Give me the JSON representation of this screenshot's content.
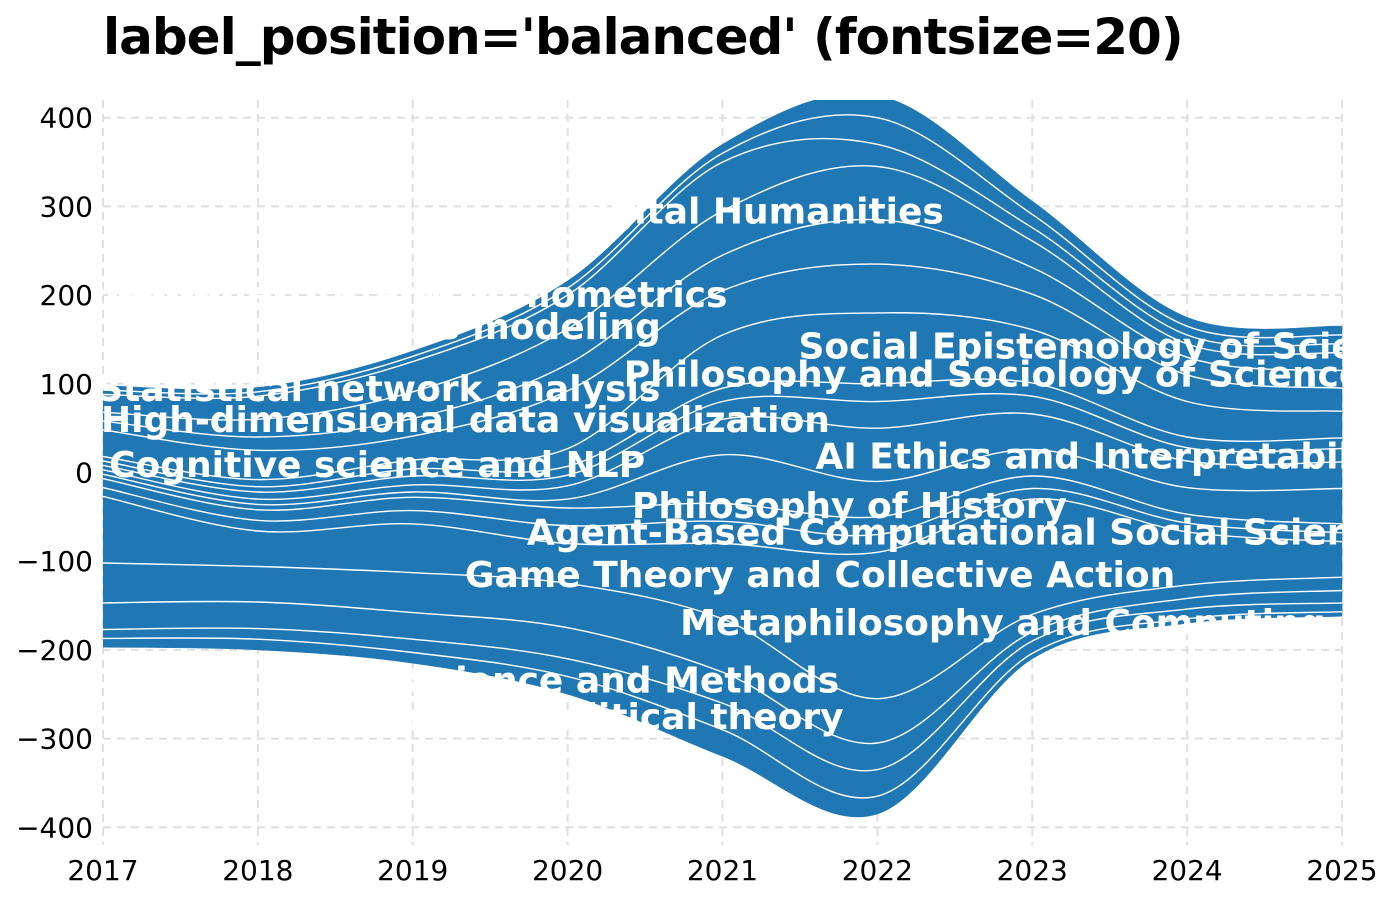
{
  "chart_data": {
    "type": "area",
    "subtype": "streamgraph",
    "title": "label_position='balanced' (fontsize=20)",
    "xlabel": "",
    "ylabel": "",
    "x": [
      2017,
      2018,
      2019,
      2020,
      2021,
      2022,
      2023,
      2024,
      2025
    ],
    "xlim": [
      2017,
      2025
    ],
    "ylim": [
      -420,
      420
    ],
    "xticks": [
      2017,
      2018,
      2019,
      2020,
      2021,
      2022,
      2023,
      2024,
      2025
    ],
    "yticks": [
      -400,
      -300,
      -200,
      -100,
      0,
      100,
      200,
      300,
      400
    ],
    "ytick_labels": [
      "−400",
      "−300",
      "−200",
      "−100",
      "0",
      "100",
      "200",
      "300",
      "400"
    ],
    "grid": true,
    "fill_color": "#1f77b4",
    "line_color": "#ffffff",
    "baseline": [
      -197,
      -200,
      -215,
      -250,
      -320,
      -385,
      -210,
      -170,
      -162
    ],
    "series": [
      {
        "name": "",
        "values": [
          10,
          12,
          12,
          20,
          30,
          20,
          6,
          5,
          5
        ]
      },
      {
        "name": "",
        "values": [
          10,
          12,
          15,
          20,
          30,
          30,
          14,
          11,
          10
        ]
      },
      {
        "name": "",
        "values": [
          30,
          30,
          30,
          35,
          35,
          30,
          10,
          12,
          14
        ]
      },
      {
        "name": "",
        "values": [
          45,
          40,
          45,
          50,
          60,
          50,
          20,
          15,
          15
        ]
      },
      {
        "name": "",
        "values": [
          75,
          40,
          55,
          45,
          85,
          165,
          130,
          60,
          40
        ]
      },
      {
        "name": "",
        "values": [
          10,
          12,
          15,
          20,
          25,
          20,
          12,
          10,
          10
        ]
      },
      {
        "name": "",
        "values": [
          10,
          12,
          15,
          20,
          20,
          20,
          14,
          10,
          10
        ]
      },
      {
        "name": "",
        "values": [
          5,
          6,
          6,
          10,
          55,
          40,
          30,
          30,
          40
        ]
      },
      {
        "name": "",
        "values": [
          5,
          6,
          8,
          15,
          40,
          60,
          40,
          30,
          30
        ]
      },
      {
        "name": "",
        "values": [
          5,
          8,
          10,
          12,
          20,
          30,
          20,
          15,
          15
        ]
      },
      {
        "name": "",
        "values": [
          5,
          6,
          8,
          10,
          15,
          20,
          15,
          12,
          12
        ]
      },
      {
        "name": "",
        "values": [
          5,
          8,
          10,
          20,
          60,
          80,
          60,
          40,
          30
        ]
      },
      {
        "name": "",
        "values": [
          30,
          33,
          27,
          65,
          50,
          55,
          40,
          30,
          26
        ]
      },
      {
        "name": "",
        "values": [
          10,
          15,
          20,
          30,
          40,
          50,
          30,
          20,
          20
        ]
      },
      {
        "name": "",
        "values": [
          10,
          20,
          30,
          40,
          50,
          60,
          30,
          15,
          20
        ]
      },
      {
        "name": "",
        "values": [
          20,
          26,
          34,
          38,
          55,
          25,
          15,
          10,
          10
        ]
      },
      {
        "name": "",
        "values": [
          5,
          5,
          6,
          8,
          10,
          30,
          15,
          10,
          10
        ]
      },
      {
        "name": "",
        "values": [
          5,
          5,
          6,
          8,
          10,
          25,
          15,
          10,
          10
        ]
      }
    ],
    "labels": [
      {
        "text": "Digital Humanities",
        "x": 2021.21,
        "y": 292
      },
      {
        "text": "Scientometrics and bibliometrics",
        "x": 2018.87,
        "y": 198
      },
      {
        "text": "Complex systems modeling",
        "x": 2018.81,
        "y": 162
      },
      {
        "text": "Social Epistemology of Science",
        "x": 2023.52,
        "y": 140
      },
      {
        "text": "Philosophy and Sociology of Science",
        "x": 2022.75,
        "y": 108
      },
      {
        "text": "Statistical network analysis",
        "x": 2018.78,
        "y": 92
      },
      {
        "text": "High-dimensional data visualization",
        "x": 2019.34,
        "y": 57
      },
      {
        "text": "AI Ethics and Interpretability",
        "x": 2023.5,
        "y": 16
      },
      {
        "text": "Cognitive science and NLP",
        "x": 2018.77,
        "y": 6
      },
      {
        "text": "Philosophy of History",
        "x": 2021.82,
        "y": -40
      },
      {
        "text": "Agent-Based Computational Social Science",
        "x": 2022.55,
        "y": -70
      },
      {
        "text": "Game Theory and Collective Action",
        "x": 2021.63,
        "y": -118
      },
      {
        "text": "Metaphilosophy and Computing",
        "x": 2022.81,
        "y": -172
      },
      {
        "text": "Social Science and Methods",
        "x": 2019.93,
        "y": -237
      },
      {
        "text": "Social and political theory",
        "x": 2020.07,
        "y": -278
      }
    ]
  }
}
